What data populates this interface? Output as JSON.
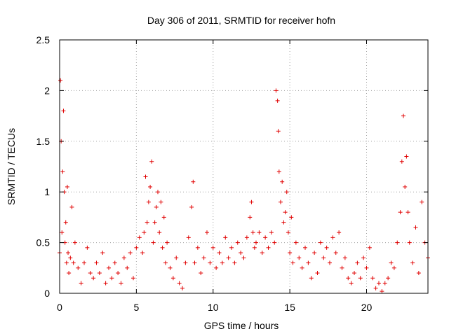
{
  "chart_data": {
    "type": "scatter",
    "title": "Day 306 of 2011, SRMTID for receiver hofn",
    "xlabel": "GPS time / hours",
    "ylabel": "SRMTID / TECUs",
    "xlim": [
      0,
      24
    ],
    "ylim": [
      0,
      2.5
    ],
    "xticks": [
      0,
      5,
      10,
      15,
      20
    ],
    "xtick_labels": [
      "0",
      "5",
      "10",
      "15",
      "20"
    ],
    "yticks": [
      0,
      0.5,
      1,
      1.5,
      2,
      2.5
    ],
    "ytick_labels": [
      "0",
      "0.5",
      "1",
      "1.5",
      "2",
      "2.5"
    ],
    "grid": true,
    "marker": "+",
    "color": "#e00000",
    "series": [
      {
        "name": "SRMTID",
        "x": [
          0.0,
          0.05,
          0.1,
          0.15,
          0.2,
          0.25,
          0.3,
          0.35,
          0.4,
          0.45,
          0.5,
          0.55,
          0.6,
          0.7,
          0.8,
          0.9,
          1.0,
          1.2,
          1.4,
          1.6,
          1.8,
          2.0,
          2.2,
          2.4,
          2.6,
          2.8,
          3.0,
          3.2,
          3.4,
          3.6,
          3.8,
          4.0,
          4.2,
          4.4,
          4.6,
          4.8,
          5.0,
          5.2,
          5.4,
          5.5,
          5.6,
          5.7,
          5.8,
          5.9,
          6.0,
          6.1,
          6.2,
          6.3,
          6.4,
          6.5,
          6.6,
          6.7,
          6.8,
          6.9,
          7.0,
          7.2,
          7.4,
          7.6,
          7.8,
          8.0,
          8.2,
          8.4,
          8.6,
          8.7,
          8.8,
          9.0,
          9.2,
          9.4,
          9.6,
          9.8,
          10.0,
          10.2,
          10.4,
          10.6,
          10.8,
          11.0,
          11.2,
          11.4,
          11.6,
          11.8,
          12.0,
          12.2,
          12.4,
          12.5,
          12.6,
          12.7,
          12.8,
          13.0,
          13.2,
          13.4,
          13.6,
          13.8,
          14.0,
          14.1,
          14.2,
          14.25,
          14.3,
          14.4,
          14.5,
          14.6,
          14.7,
          14.8,
          14.9,
          15.0,
          15.1,
          15.2,
          15.4,
          15.6,
          15.8,
          16.0,
          16.2,
          16.4,
          16.6,
          16.8,
          17.0,
          17.2,
          17.4,
          17.6,
          17.8,
          18.0,
          18.2,
          18.4,
          18.6,
          18.8,
          19.0,
          19.2,
          19.4,
          19.6,
          19.8,
          20.0,
          20.2,
          20.4,
          20.6,
          20.8,
          21.0,
          21.2,
          21.4,
          21.6,
          21.8,
          22.0,
          22.2,
          22.3,
          22.4,
          22.5,
          22.6,
          22.7,
          22.8,
          23.0,
          23.2,
          23.4,
          23.6,
          23.8,
          24.0
        ],
        "y": [
          0.4,
          2.1,
          1.5,
          0.6,
          1.2,
          1.8,
          1.0,
          0.5,
          0.7,
          0.3,
          1.05,
          0.4,
          0.2,
          0.35,
          0.85,
          0.3,
          0.5,
          0.25,
          0.1,
          0.3,
          0.45,
          0.2,
          0.15,
          0.3,
          0.2,
          0.4,
          0.1,
          0.25,
          0.15,
          0.3,
          0.2,
          0.1,
          0.35,
          0.25,
          0.4,
          0.15,
          0.45,
          0.55,
          0.4,
          0.6,
          1.15,
          0.7,
          0.9,
          1.05,
          1.3,
          0.5,
          0.7,
          0.85,
          1.0,
          0.6,
          0.9,
          0.45,
          0.75,
          0.3,
          0.5,
          0.25,
          0.15,
          0.35,
          0.1,
          0.05,
          0.3,
          0.55,
          0.85,
          1.1,
          0.3,
          0.45,
          0.2,
          0.35,
          0.6,
          0.3,
          0.45,
          0.25,
          0.4,
          0.3,
          0.55,
          0.35,
          0.45,
          0.3,
          0.5,
          0.4,
          0.35,
          0.55,
          0.75,
          0.9,
          0.6,
          0.45,
          0.5,
          0.6,
          0.4,
          0.55,
          0.45,
          0.6,
          0.5,
          2.0,
          1.9,
          1.6,
          1.2,
          0.9,
          1.1,
          0.7,
          0.8,
          1.0,
          0.6,
          0.4,
          0.75,
          0.3,
          0.5,
          0.35,
          0.25,
          0.45,
          0.3,
          0.15,
          0.4,
          0.2,
          0.5,
          0.35,
          0.45,
          0.3,
          0.55,
          0.4,
          0.6,
          0.25,
          0.35,
          0.15,
          0.1,
          0.2,
          0.3,
          0.15,
          0.35,
          0.25,
          0.45,
          0.15,
          0.05,
          0.1,
          0.02,
          0.1,
          0.15,
          0.3,
          0.25,
          0.5,
          0.8,
          1.3,
          1.75,
          1.05,
          1.35,
          0.8,
          0.5,
          0.3,
          0.65,
          0.2,
          0.9,
          0.5,
          0.35
        ]
      }
    ]
  }
}
